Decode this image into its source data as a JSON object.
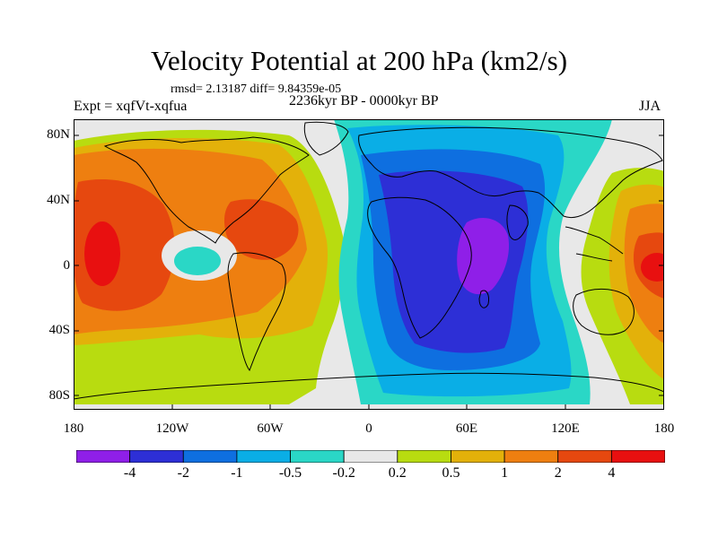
{
  "title": "Velocity Potential at 200 hPa (km2/s)",
  "stats": "rmsd= 2.13187 diff= 9.84359e-05",
  "experiment": "Expt = xqfVt-xqfua",
  "period": "2236kyr BP - 0000kyr BP",
  "season": "JJA",
  "lat_labels": [
    "80N",
    "40N",
    "0",
    "40S",
    "80S"
  ],
  "lon_labels": [
    "180",
    "120W",
    "60W",
    "0",
    "60E",
    "120E",
    "180"
  ],
  "colorbar": {
    "colors": [
      "#8f1fe8",
      "#2d2fd6",
      "#0e6fe0",
      "#0aaee6",
      "#2ad7c6",
      "#e8e8e8",
      "#b8dc10",
      "#e3b10a",
      "#ee7f10",
      "#e6480f",
      "#e81010"
    ],
    "labels": [
      "-4",
      "-2",
      "-1",
      "-0.5",
      "-0.2",
      "0.2",
      "0.5",
      "1",
      "2",
      "4"
    ]
  }
}
